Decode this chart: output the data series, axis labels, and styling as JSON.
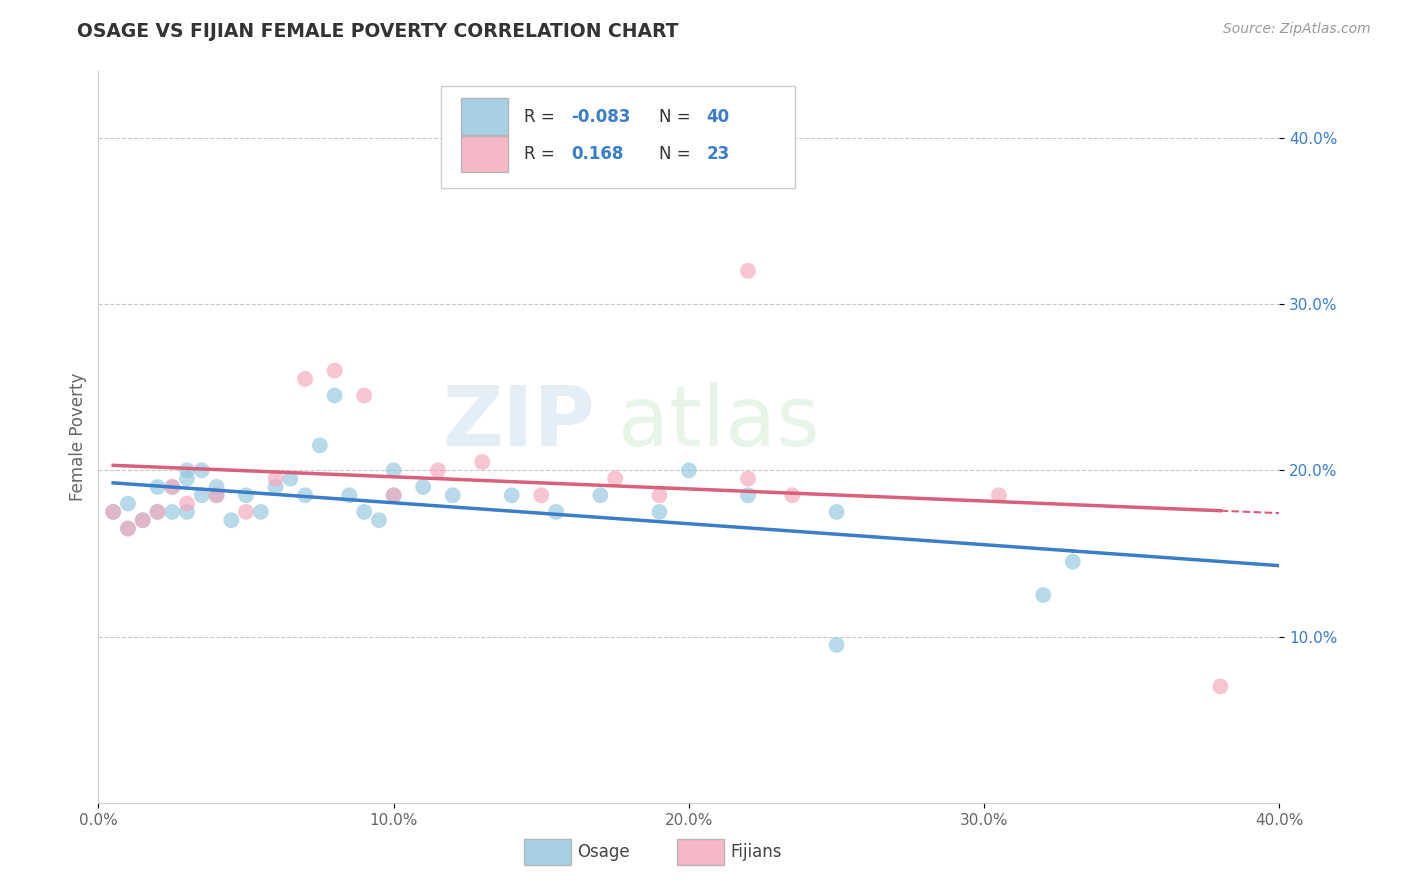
{
  "title": "OSAGE VS FIJIAN FEMALE POVERTY CORRELATION CHART",
  "source": "Source: ZipAtlas.com",
  "ylabel": "Female Poverty",
  "watermark_zip": "ZIP",
  "watermark_atlas": "atlas",
  "xlim": [
    0.0,
    0.4
  ],
  "ylim": [
    0.0,
    0.44
  ],
  "xticks": [
    0.0,
    0.1,
    0.2,
    0.3,
    0.4
  ],
  "yticks": [
    0.1,
    0.2,
    0.3,
    0.4
  ],
  "xticklabels": [
    "0.0%",
    "10.0%",
    "20.0%",
    "30.0%",
    "40.0%"
  ],
  "yticklabels": [
    "10.0%",
    "20.0%",
    "30.0%",
    "40.0%"
  ],
  "grid_color": "#c8c8c8",
  "background_color": "#ffffff",
  "blue_color": "#92c5de",
  "pink_color": "#f4a6ba",
  "blue_line_color": "#3a7dc9",
  "pink_line_color": "#d9607a",
  "legend_r_blue": "-0.083",
  "legend_n_blue": "40",
  "legend_r_pink": "0.168",
  "legend_n_pink": "23",
  "legend_label_blue": "Osage",
  "legend_label_pink": "Fijians",
  "osage_x": [
    0.005,
    0.01,
    0.01,
    0.015,
    0.02,
    0.02,
    0.025,
    0.025,
    0.03,
    0.03,
    0.03,
    0.035,
    0.035,
    0.04,
    0.04,
    0.045,
    0.05,
    0.055,
    0.06,
    0.065,
    0.07,
    0.075,
    0.08,
    0.085,
    0.09,
    0.095,
    0.1,
    0.1,
    0.11,
    0.12,
    0.14,
    0.155,
    0.17,
    0.19,
    0.2,
    0.22,
    0.25,
    0.32,
    0.25,
    0.33
  ],
  "osage_y": [
    0.175,
    0.165,
    0.18,
    0.17,
    0.19,
    0.175,
    0.19,
    0.175,
    0.2,
    0.195,
    0.175,
    0.185,
    0.2,
    0.185,
    0.19,
    0.17,
    0.185,
    0.175,
    0.19,
    0.195,
    0.185,
    0.215,
    0.245,
    0.185,
    0.175,
    0.17,
    0.2,
    0.185,
    0.19,
    0.185,
    0.185,
    0.175,
    0.185,
    0.175,
    0.2,
    0.185,
    0.175,
    0.125,
    0.095,
    0.145
  ],
  "fijian_x": [
    0.005,
    0.01,
    0.015,
    0.02,
    0.025,
    0.03,
    0.04,
    0.05,
    0.06,
    0.07,
    0.08,
    0.09,
    0.1,
    0.115,
    0.13,
    0.15,
    0.175,
    0.19,
    0.22,
    0.235,
    0.305,
    0.38,
    0.22
  ],
  "fijian_y": [
    0.175,
    0.165,
    0.17,
    0.175,
    0.19,
    0.18,
    0.185,
    0.175,
    0.195,
    0.255,
    0.26,
    0.245,
    0.185,
    0.2,
    0.205,
    0.185,
    0.195,
    0.185,
    0.195,
    0.185,
    0.185,
    0.07,
    0.32
  ]
}
